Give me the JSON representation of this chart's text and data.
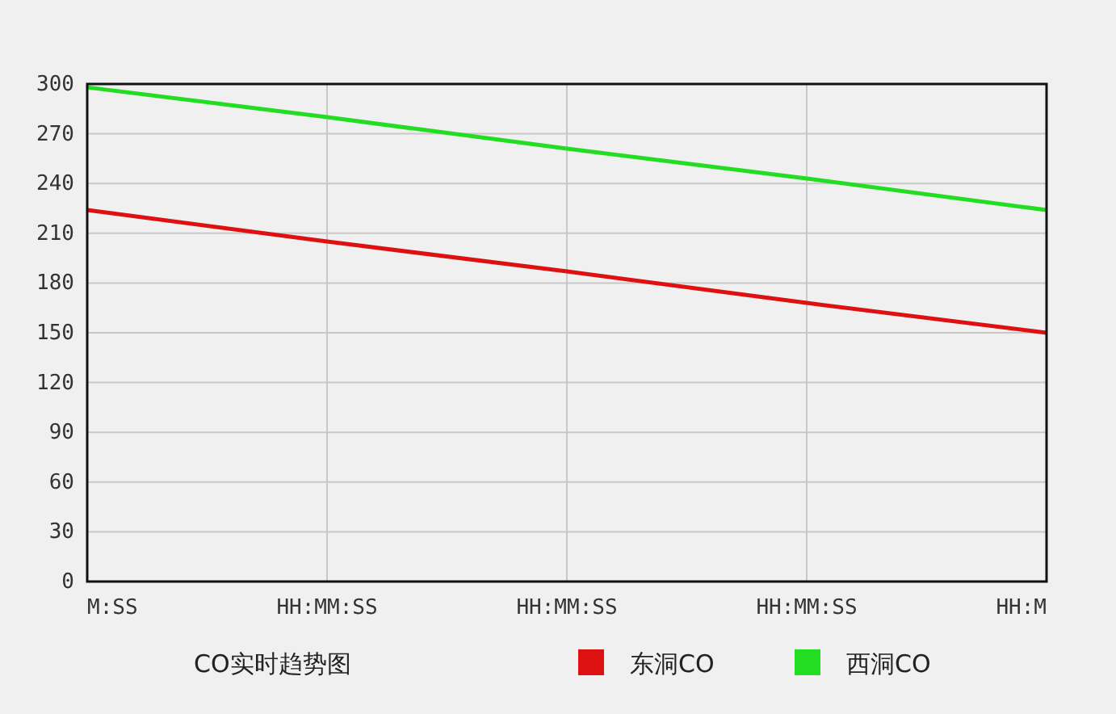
{
  "chart_data": {
    "type": "line",
    "title": "CO实时趋势图",
    "categories": [
      "M:SS",
      "HH:MM:SS",
      "HH:MM:SS",
      "HH:MM:SS",
      "HH:M"
    ],
    "series": [
      {
        "name": "东洞CO",
        "color": "#dd1111",
        "values": [
          224,
          205,
          187,
          168,
          150
        ]
      },
      {
        "name": "西洞CO",
        "color": "#22dd22",
        "values": [
          298,
          280,
          261,
          243,
          224
        ]
      }
    ],
    "ylim": [
      0,
      300
    ],
    "yticks": [
      0,
      30,
      60,
      90,
      120,
      150,
      180,
      210,
      240,
      270,
      300
    ],
    "grid": true,
    "legend": "bottom",
    "marker": "none",
    "line_style": "solid"
  }
}
